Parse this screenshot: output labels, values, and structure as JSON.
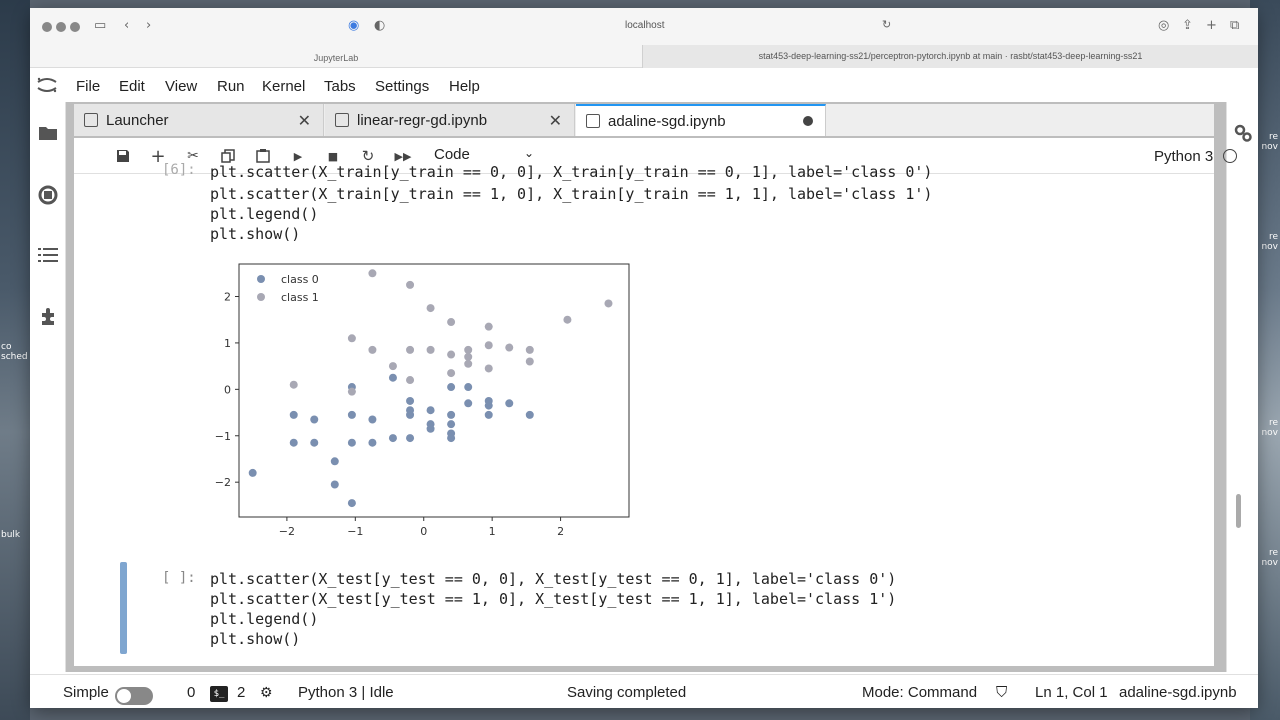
{
  "desktop": {
    "right_labels": [
      "re",
      "nov",
      "re",
      "nov",
      "re",
      "nov",
      "re",
      "nov"
    ],
    "left_labels": [
      "co",
      "sched",
      "bulk"
    ]
  },
  "browser": {
    "address": "localhost",
    "tab_left": "JupyterLab",
    "tab_right": "stat453-deep-learning-ss21/perceptron-pytorch.ipynb at main · rasbt/stat453-deep-learning-ss21"
  },
  "menu": {
    "items": [
      "File",
      "Edit",
      "View",
      "Run",
      "Kernel",
      "Tabs",
      "Settings",
      "Help"
    ]
  },
  "tabs": [
    {
      "label": "Launcher"
    },
    {
      "label": "linear-regr-gd.ipynb"
    },
    {
      "label": "adaline-sgd.ipynb"
    }
  ],
  "toolbar": {
    "cell_type": "Code",
    "kernel": "Python 3"
  },
  "cells": {
    "first": {
      "partial_line": "plt.scatter(X_train[y_train == 0, 0], X_train[y_train == 0, 1], label='class 0')",
      "lines": [
        "plt.scatter(X_train[y_train == 1, 0], X_train[y_train == 1, 1], label='class 1')",
        "plt.legend()",
        "plt.show()"
      ]
    },
    "second": {
      "prompt": "[ ]:",
      "lines": [
        "plt.scatter(X_test[y_test == 0, 0], X_test[y_test == 0, 1], label='class 0')",
        "plt.scatter(X_test[y_test == 1, 0], X_test[y_test == 1, 1], label='class 1')",
        "plt.legend()",
        "plt.show()"
      ]
    }
  },
  "chart_data": {
    "type": "scatter",
    "xlim": [
      -2.7,
      3.0
    ],
    "ylim": [
      -2.75,
      2.7
    ],
    "xticks": [
      -2,
      -1,
      0,
      1,
      2
    ],
    "yticks": [
      -2,
      -1,
      0,
      1,
      2
    ],
    "legend": "top-left",
    "series": [
      {
        "name": "class 0",
        "color": "#7a8fb0",
        "points": [
          [
            -2.5,
            -1.8
          ],
          [
            -1.9,
            -0.55
          ],
          [
            -1.9,
            -1.15
          ],
          [
            -1.6,
            -0.65
          ],
          [
            -1.6,
            -1.15
          ],
          [
            -1.3,
            -1.55
          ],
          [
            -1.3,
            -2.05
          ],
          [
            -1.05,
            -2.45
          ],
          [
            -1.05,
            -1.15
          ],
          [
            -1.05,
            -0.55
          ],
          [
            -1.05,
            0.05
          ],
          [
            -0.75,
            -0.65
          ],
          [
            -0.75,
            -1.15
          ],
          [
            -0.45,
            -1.05
          ],
          [
            -0.45,
            0.25
          ],
          [
            -0.2,
            -1.05
          ],
          [
            -0.2,
            -0.25
          ],
          [
            -0.2,
            -0.45
          ],
          [
            -0.2,
            -0.55
          ],
          [
            0.1,
            -0.45
          ],
          [
            0.1,
            -0.75
          ],
          [
            0.1,
            -0.85
          ],
          [
            0.4,
            -0.55
          ],
          [
            0.4,
            -0.75
          ],
          [
            0.4,
            -0.95
          ],
          [
            0.4,
            -1.05
          ],
          [
            0.4,
            0.05
          ],
          [
            0.65,
            -0.3
          ],
          [
            0.65,
            0.05
          ],
          [
            0.95,
            -0.25
          ],
          [
            0.95,
            -0.35
          ],
          [
            0.95,
            -0.55
          ],
          [
            1.25,
            -0.3
          ],
          [
            1.55,
            -0.55
          ]
        ]
      },
      {
        "name": "class 1",
        "color": "#a8a8b4",
        "points": [
          [
            -1.9,
            0.1
          ],
          [
            -1.05,
            1.1
          ],
          [
            -1.05,
            -0.05
          ],
          [
            -0.75,
            2.5
          ],
          [
            -0.75,
            0.85
          ],
          [
            -0.45,
            0.5
          ],
          [
            -0.2,
            2.25
          ],
          [
            -0.2,
            0.85
          ],
          [
            -0.2,
            0.2
          ],
          [
            0.1,
            1.75
          ],
          [
            0.1,
            0.85
          ],
          [
            0.4,
            1.45
          ],
          [
            0.4,
            0.75
          ],
          [
            0.4,
            0.35
          ],
          [
            0.65,
            0.85
          ],
          [
            0.65,
            0.7
          ],
          [
            0.65,
            0.55
          ],
          [
            0.95,
            1.35
          ],
          [
            0.95,
            0.95
          ],
          [
            0.95,
            0.45
          ],
          [
            1.25,
            0.9
          ],
          [
            1.55,
            0.85
          ],
          [
            1.55,
            0.6
          ],
          [
            2.1,
            1.5
          ],
          [
            2.7,
            1.85
          ]
        ]
      }
    ]
  },
  "status": {
    "mode_label": "Simple",
    "count0": "0",
    "terminal_label": "$_",
    "count2": "2",
    "kernel_status": "Python 3 | Idle",
    "saving": "Saving completed",
    "mode": "Mode: Command",
    "position": "Ln 1, Col 1",
    "filename": "adaline-sgd.ipynb"
  }
}
